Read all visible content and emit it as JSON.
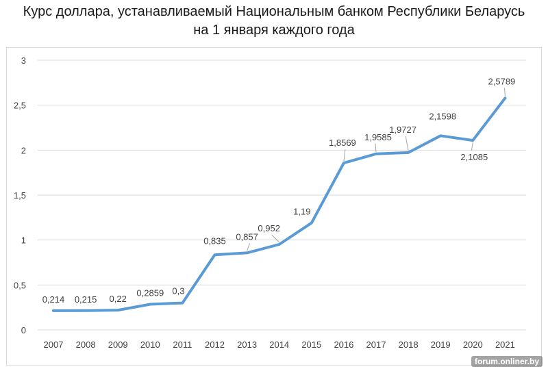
{
  "header": {
    "title_line1": "Курс доллара, устанавливаемый Национальным банком Республики Беларусь",
    "title_line2": "на 1 января каждого года"
  },
  "watermark": "forum.onliner.by",
  "colors": {
    "line": "#5b9bd5",
    "grid": "#d9d9d9",
    "leader": "#a6a6a6",
    "text": "#404040"
  },
  "chart_data": {
    "type": "line",
    "title": "Курс доллара, устанавливаемый Национальным банком Республики Беларусь на 1 января каждого года",
    "categories": [
      "2007",
      "2008",
      "2009",
      "2010",
      "2011",
      "2012",
      "2013",
      "2014",
      "2015",
      "2016",
      "2017",
      "2018",
      "2019",
      "2020",
      "2021"
    ],
    "values": [
      0.214,
      0.215,
      0.22,
      0.2859,
      0.3,
      0.835,
      0.857,
      0.952,
      1.19,
      1.8569,
      1.9585,
      1.9727,
      2.1598,
      2.1085,
      2.5789
    ],
    "data_labels": [
      "0,214",
      "0,215",
      "0,22",
      "0,2859",
      "0,3",
      "0,835",
      "0,857",
      "0,952",
      "1,19",
      "1,8569",
      "1,9585",
      "1,9727",
      "2,1598",
      "2,1085",
      "2,5789"
    ],
    "y_ticks": [
      0,
      0.5,
      1,
      1.5,
      2,
      2.5,
      3
    ],
    "y_tick_labels": [
      "0",
      "0,5",
      "1",
      "1,5",
      "2",
      "2,5",
      "3"
    ],
    "ylim": [
      0,
      3
    ],
    "xlabel": "",
    "ylabel": "",
    "grid": true,
    "legend": "none"
  }
}
